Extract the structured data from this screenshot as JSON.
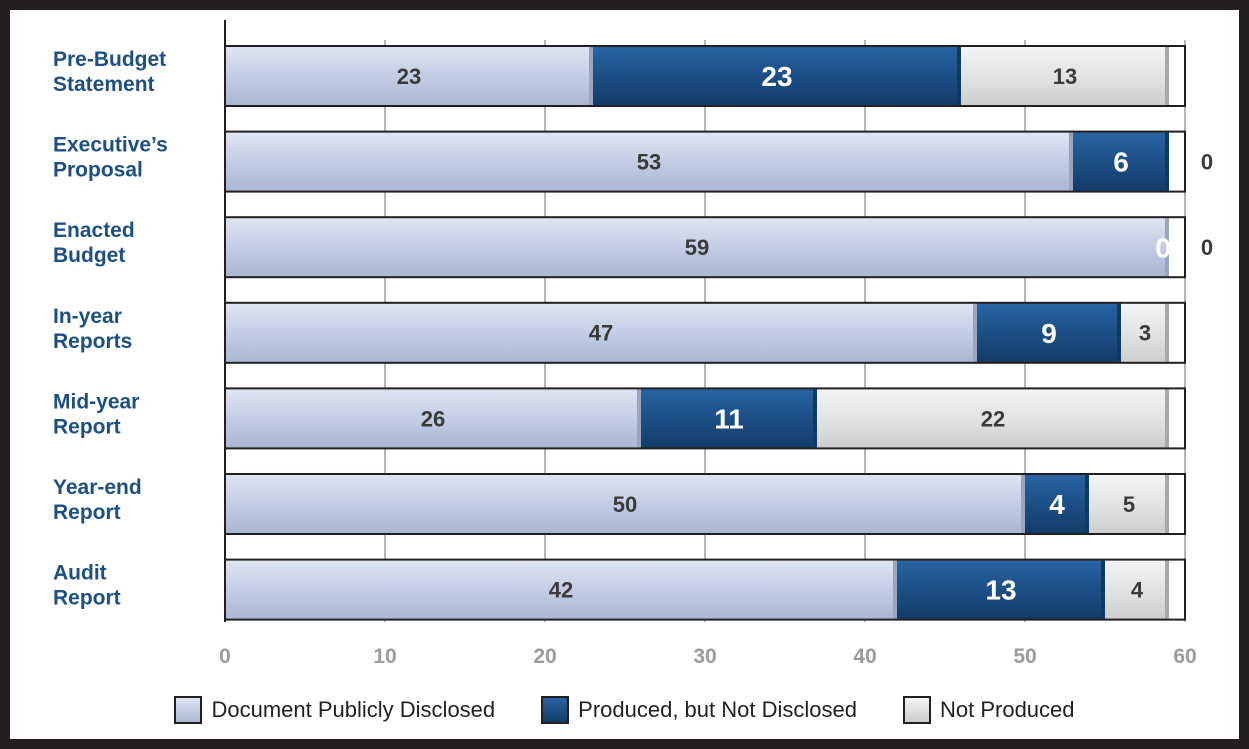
{
  "chart_data": {
    "type": "bar",
    "orientation": "horizontal",
    "stacked": true,
    "categories": [
      "Pre-Budget Statement",
      "Executive’s Proposal",
      "Enacted Budget",
      "In-year Reports",
      "Mid-year Report",
      "Year-end Report",
      "Audit Report"
    ],
    "category_lines": [
      [
        "Pre-Budget",
        "Statement"
      ],
      [
        "Executive’s",
        "Proposal"
      ],
      [
        "Enacted",
        "Budget"
      ],
      [
        "In-year",
        "Reports"
      ],
      [
        "Mid-year",
        "Report"
      ],
      [
        "Year-end",
        "Report"
      ],
      [
        "Audit",
        "Report"
      ]
    ],
    "series": [
      {
        "name": "Document Publicly Disclosed",
        "values": [
          23,
          53,
          59,
          47,
          26,
          50,
          42
        ]
      },
      {
        "name": "Produced, but Not Disclosed",
        "values": [
          23,
          6,
          0,
          9,
          11,
          4,
          13
        ]
      },
      {
        "name": "Not Produced",
        "values": [
          13,
          0,
          0,
          3,
          22,
          5,
          4
        ]
      }
    ],
    "xlim": [
      0,
      60
    ],
    "xticks": [
      0,
      10,
      20,
      30,
      40,
      50,
      60
    ],
    "grid": true,
    "legend_position": "bottom",
    "title": "",
    "xlabel": "",
    "ylabel": ""
  },
  "colors": {
    "disclosed": "#c3cde4",
    "produced": "#1c4f86",
    "not_produced": "#e3e3e3",
    "category_text": "#1c4f86",
    "tick_text": "#9b9b9b",
    "frame": "#231f20"
  }
}
